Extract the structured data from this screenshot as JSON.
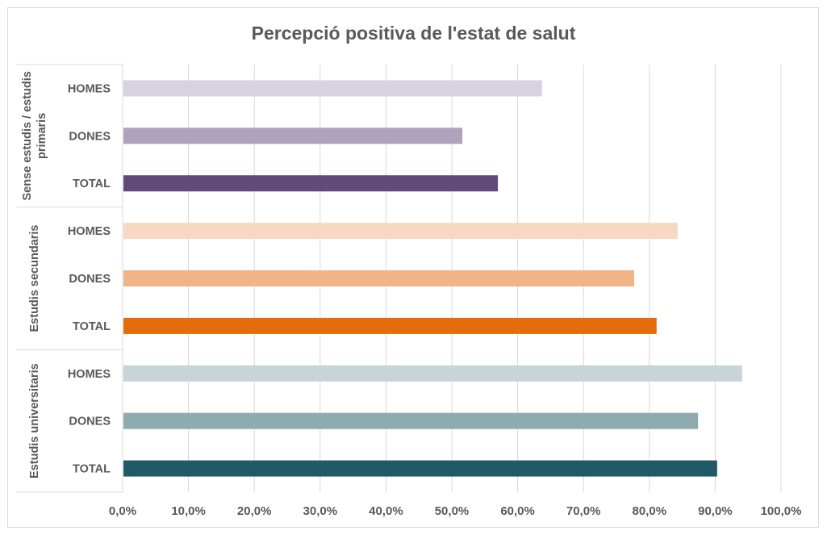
{
  "chart_data": {
    "type": "bar",
    "orientation": "horizontal",
    "title": "Percepció positiva de l'estat de salut",
    "xlabel": "",
    "ylabel": "",
    "xlim": [
      0,
      100
    ],
    "x_ticks": [
      "0,0%",
      "10,0%",
      "20,0%",
      "30,0%",
      "40,0%",
      "50,0%",
      "60,0%",
      "70,0%",
      "80,0%",
      "90,0%",
      "100,0%"
    ],
    "grid": true,
    "groups": [
      {
        "name": "Sense estudis / estudis primaris",
        "label_lines": [
          "Sense estudis / estudis",
          "primaris"
        ],
        "bars": [
          {
            "category": "HOMES",
            "value": 63.7,
            "color": "#d8d1df"
          },
          {
            "category": "DONES",
            "value": 51.6,
            "color": "#aea2bd"
          },
          {
            "category": "TOTAL",
            "value": 57.0,
            "color": "#5f4a7a"
          }
        ]
      },
      {
        "name": "Estudis secundaris",
        "label_lines": [
          "Estudis secundaris"
        ],
        "bars": [
          {
            "category": "HOMES",
            "value": 84.3,
            "color": "#f7d9c3"
          },
          {
            "category": "DONES",
            "value": 77.7,
            "color": "#f1b486"
          },
          {
            "category": "TOTAL",
            "value": 81.1,
            "color": "#e46c0a"
          }
        ]
      },
      {
        "name": "Estudis universitaris",
        "label_lines": [
          "Estudis universitaris"
        ],
        "bars": [
          {
            "category": "HOMES",
            "value": 94.1,
            "color": "#c7d5d8"
          },
          {
            "category": "DONES",
            "value": 87.4,
            "color": "#8eabb0"
          },
          {
            "category": "TOTAL",
            "value": 90.3,
            "color": "#215968"
          }
        ]
      }
    ]
  }
}
